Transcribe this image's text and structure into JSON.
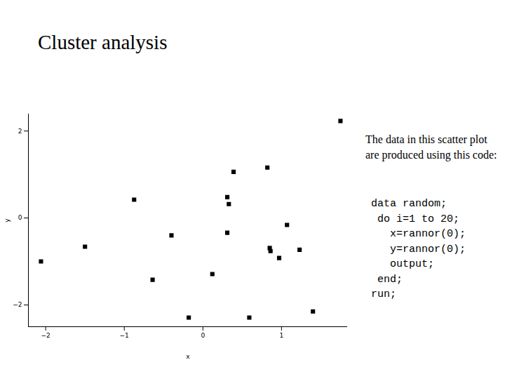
{
  "chart_data": {
    "type": "scatter",
    "title": "Cluster analysis",
    "x_label": "x",
    "y_label": "y",
    "x": [
      1.75,
      0.82,
      0.39,
      -0.875,
      0.31,
      0.33,
      1.07,
      0.31,
      -0.4,
      -1.5,
      0.85,
      0.86,
      1.23,
      0.97,
      -2.06,
      0.12,
      -0.64,
      1.4,
      -0.18,
      0.59
    ],
    "values": [
      2.23,
      1.16,
      1.06,
      0.42,
      0.48,
      0.32,
      -0.16,
      -0.34,
      -0.4,
      -0.66,
      -0.69,
      -0.76,
      -0.73,
      -0.92,
      -1.0,
      -1.29,
      -1.42,
      -2.15,
      -2.29,
      -2.29
    ],
    "xlim": [
      -2.22,
      1.84
    ],
    "ylim": [
      -2.5,
      2.39
    ],
    "xticks": [
      -2,
      -1,
      0,
      1
    ],
    "yticks": [
      -2,
      0,
      2
    ],
    "marker": "square",
    "color": "#000000",
    "annotations": {
      "caption": "The data in this scatter plot are produced using this code:",
      "code": [
        "data random;",
        " do i=1 to 20;",
        "   x=rannor(0);",
        "   y=rannor(0);",
        "   output;",
        " end;",
        "run;"
      ]
    }
  }
}
